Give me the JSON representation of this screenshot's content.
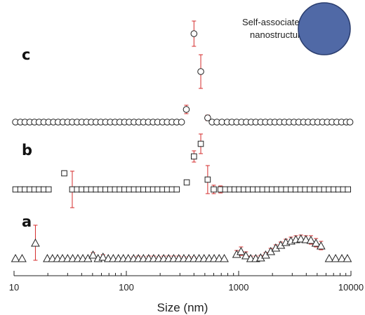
{
  "chart_data": {
    "type": "scatter",
    "xscale": "log",
    "xlim": [
      10,
      10000
    ],
    "x_ticks": [
      "10",
      "100",
      "1000",
      "10000"
    ],
    "xlabel": "Size (nm)",
    "grid": false,
    "annotation": {
      "line1": "Self-associated",
      "line2": "nanostructure"
    },
    "colors": {
      "marker": "#222222",
      "error_bar": "#d42b2b",
      "sphere": "#5069a6",
      "sphere_edge": "#2a3d6e"
    },
    "series": [
      {
        "label": "c",
        "marker": "circle",
        "x": [
          10.3,
          11.4,
          12.5,
          13.8,
          15.2,
          16.7,
          18.4,
          20.3,
          22.4,
          24.7,
          27.2,
          30,
          33,
          36.4,
          40.1,
          44.2,
          48.7,
          53.7,
          59.2,
          65.3,
          72,
          79.3,
          87.4,
          96.3,
          106,
          117,
          129,
          142,
          157,
          173,
          190,
          210,
          231,
          255,
          281,
          310,
          342,
          400,
          460,
          530,
          580,
          640,
          710,
          790,
          870,
          960,
          1060,
          1170,
          1290,
          1420,
          1570,
          1730,
          1910,
          2100,
          2320,
          2560,
          2820,
          3110,
          3430,
          3780,
          4160,
          4590,
          5060,
          5580,
          6150,
          6780,
          7480,
          8240,
          9090,
          9800
        ],
        "y": [
          0,
          0,
          0,
          0,
          0,
          0,
          0,
          0,
          0,
          0,
          0,
          0,
          0,
          0,
          0,
          0,
          0,
          0,
          0,
          0,
          0,
          0,
          0,
          0,
          0,
          0,
          0,
          0,
          0,
          0,
          0,
          0,
          0,
          0,
          0,
          0,
          18,
          126,
          72,
          6,
          0,
          0,
          0,
          0,
          0,
          0,
          0,
          0,
          0,
          0,
          0,
          0,
          0,
          0,
          0,
          0,
          0,
          0,
          0,
          0,
          0,
          0,
          0,
          0,
          0,
          0,
          0,
          0,
          0,
          0
        ],
        "err": [
          0,
          0,
          0,
          0,
          0,
          0,
          0,
          0,
          0,
          0,
          0,
          0,
          0,
          0,
          0,
          0,
          0,
          0,
          0,
          0,
          0,
          0,
          0,
          0,
          0,
          0,
          0,
          0,
          0,
          0,
          0,
          0,
          0,
          0,
          0,
          0,
          6,
          18,
          24,
          4,
          0,
          0,
          0,
          0,
          0,
          0,
          0,
          0,
          0,
          0,
          0,
          0,
          0,
          0,
          0,
          0,
          0,
          0,
          0,
          0,
          0,
          0,
          0,
          0,
          0,
          0,
          0,
          0,
          0,
          0
        ]
      },
      {
        "label": "b",
        "marker": "square",
        "x": [
          10.3,
          11.4,
          12.5,
          13.8,
          15.2,
          16.7,
          18.4,
          20.3,
          28,
          33,
          36.4,
          40.1,
          44.2,
          48.7,
          53.7,
          59.2,
          65.3,
          72,
          79.3,
          87.4,
          96.3,
          106,
          117,
          129,
          142,
          157,
          173,
          190,
          210,
          231,
          255,
          281,
          345,
          400,
          460,
          530,
          600,
          690,
          760,
          840,
          920,
          1010,
          1110,
          1220,
          1340,
          1480,
          1630,
          1800,
          1980,
          2180,
          2400,
          2650,
          2920,
          3220,
          3550,
          3910,
          4310,
          4750,
          5240,
          5780,
          6370,
          7020,
          7740,
          8530,
          9400
        ],
        "y": [
          0,
          0,
          0,
          0,
          0,
          0,
          0,
          0,
          23,
          0,
          0,
          0,
          0,
          0,
          0,
          0,
          0,
          0,
          0,
          0,
          0,
          0,
          0,
          0,
          0,
          0,
          0,
          0,
          0,
          0,
          0,
          0,
          10,
          47,
          65,
          14,
          0,
          0,
          0,
          0,
          0,
          0,
          0,
          0,
          0,
          0,
          0,
          0,
          0,
          0,
          0,
          0,
          0,
          0,
          0,
          0,
          0,
          0,
          0,
          0,
          0,
          0,
          0,
          0,
          0
        ],
        "err": [
          0,
          0,
          0,
          0,
          0,
          0,
          0,
          0,
          0,
          26,
          0,
          0,
          0,
          0,
          0,
          0,
          0,
          0,
          0,
          0,
          0,
          0,
          0,
          0,
          0,
          0,
          0,
          0,
          0,
          0,
          0,
          0,
          0,
          8,
          14,
          20,
          6,
          5,
          0,
          0,
          0,
          0,
          0,
          0,
          0,
          0,
          0,
          0,
          0,
          0,
          0,
          0,
          0,
          0,
          0,
          0,
          0,
          0,
          0,
          0,
          0,
          0,
          0,
          0,
          0
        ]
      },
      {
        "label": "a",
        "marker": "triangle",
        "x": [
          10.3,
          11.8,
          15.5,
          19.8,
          22,
          24.4,
          27,
          30,
          33.3,
          37,
          41,
          45.5,
          50.5,
          56,
          62,
          69,
          76.5,
          85,
          94,
          104,
          116,
          128,
          142,
          158,
          175,
          194,
          215,
          238,
          264,
          293,
          325,
          360,
          400,
          444,
          492,
          546,
          605,
          670,
          745,
          960,
          1050,
          1160,
          1280,
          1420,
          1570,
          1740,
          1930,
          2140,
          2370,
          2630,
          2920,
          3230,
          3580,
          3970,
          4400,
          4880,
          5410,
          6400,
          7300,
          8300,
          9300
        ],
        "y": [
          0,
          0,
          22,
          0,
          0,
          0,
          0,
          0,
          0,
          0,
          0,
          0,
          5,
          0,
          2,
          0,
          0,
          0,
          0,
          0,
          0,
          0,
          0,
          0,
          0,
          0,
          0,
          0,
          0,
          0,
          0,
          0,
          0,
          0,
          0,
          0,
          0,
          0,
          0,
          6,
          10,
          4,
          0,
          0,
          1,
          5,
          10,
          15,
          19,
          23,
          25,
          27,
          28,
          27,
          26,
          22,
          18,
          0,
          0,
          0,
          0
        ],
        "err": [
          0,
          0,
          25,
          0,
          0,
          0,
          0,
          0,
          0,
          0,
          0,
          0,
          3,
          0,
          3,
          0,
          0,
          0,
          0,
          0,
          2,
          3,
          2,
          3,
          3,
          2,
          3,
          3,
          3,
          3,
          2,
          2,
          2,
          0,
          0,
          0,
          0,
          0,
          0,
          5,
          6,
          5,
          3,
          3,
          3,
          3,
          4,
          4,
          4,
          4,
          5,
          5,
          5,
          5,
          6,
          6,
          6,
          0,
          0,
          0,
          0
        ]
      }
    ]
  }
}
